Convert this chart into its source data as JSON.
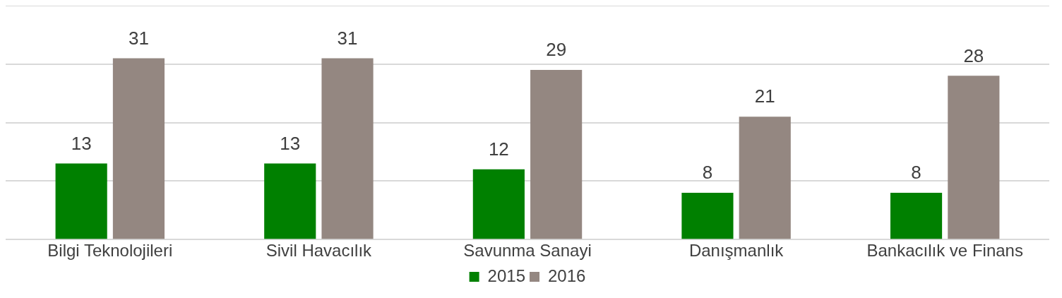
{
  "chart_data": {
    "type": "bar",
    "categories": [
      "Bilgi Teknolojileri",
      "Sivil Havacılık",
      "Savunma Sanayi",
      "Danışmanlık",
      "Bankacılık ve Finans"
    ],
    "series": [
      {
        "name": "2015",
        "color": "#008000",
        "values": [
          13,
          13,
          12,
          8,
          8
        ]
      },
      {
        "name": "2016",
        "color": "#948781",
        "values": [
          31,
          31,
          29,
          21,
          28
        ]
      }
    ],
    "ylim": [
      0,
      40
    ],
    "grid": "y",
    "tick_labels": "x",
    "legend": "bottom",
    "data_labels": true
  }
}
